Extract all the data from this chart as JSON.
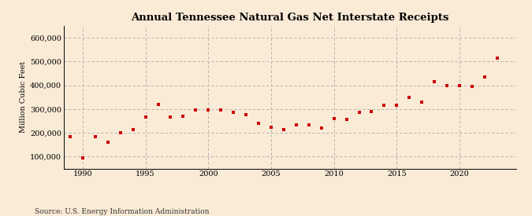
{
  "title": "Annual Tennessee Natural Gas Net Interstate Receipts",
  "ylabel": "Million Cubic Feet",
  "source": "Source: U.S. Energy Information Administration",
  "background_color": "#faebd7",
  "marker_color": "#cc0000",
  "xlim": [
    1988.5,
    2024.5
  ],
  "ylim": [
    50000,
    650000
  ],
  "yticks": [
    100000,
    200000,
    300000,
    400000,
    500000,
    600000
  ],
  "xticks": [
    1990,
    1995,
    2000,
    2005,
    2010,
    2015,
    2020
  ],
  "years": [
    1989,
    1990,
    1991,
    1992,
    1993,
    1994,
    1995,
    1996,
    1997,
    1998,
    1999,
    2000,
    2001,
    2002,
    2003,
    2004,
    2005,
    2006,
    2007,
    2008,
    2009,
    2010,
    2011,
    2012,
    2013,
    2014,
    2015,
    2016,
    2017,
    2018,
    2019,
    2020,
    2021,
    2022,
    2023
  ],
  "values": [
    185000,
    95000,
    185000,
    160000,
    200000,
    215000,
    265000,
    320000,
    265000,
    270000,
    295000,
    295000,
    295000,
    285000,
    275000,
    240000,
    225000,
    215000,
    235000,
    235000,
    220000,
    260000,
    255000,
    285000,
    290000,
    315000,
    315000,
    350000,
    330000,
    415000,
    400000,
    400000,
    395000,
    435000,
    515000
  ]
}
